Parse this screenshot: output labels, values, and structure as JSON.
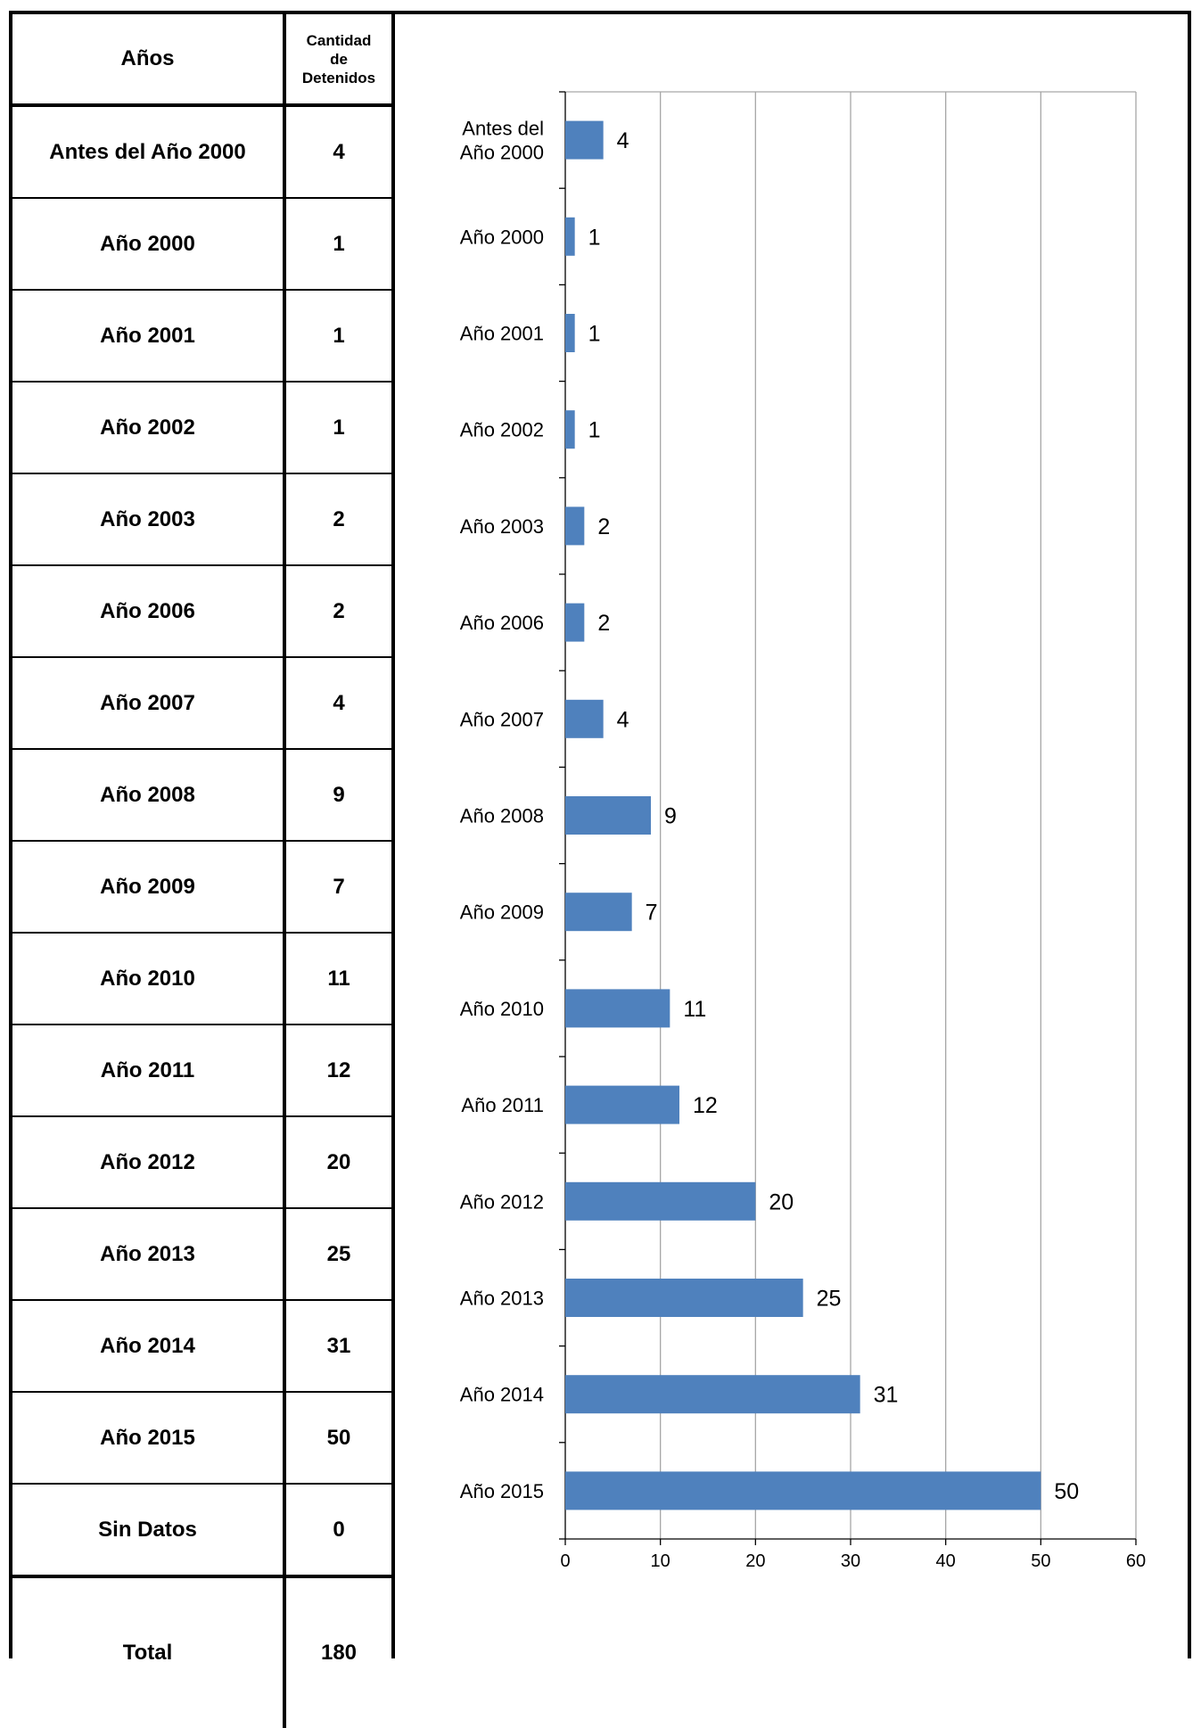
{
  "table": {
    "header_years": "Años",
    "header_count_line1": "Cantidad",
    "header_count_line2": "de",
    "header_count_line3": "Detenidos",
    "rows": [
      {
        "year": "Antes del Año 2000",
        "count": "4"
      },
      {
        "year": "Año 2000",
        "count": "1"
      },
      {
        "year": "Año 2001",
        "count": "1"
      },
      {
        "year": "Año 2002",
        "count": "1"
      },
      {
        "year": "Año 2003",
        "count": "2"
      },
      {
        "year": "Año 2006",
        "count": "2"
      },
      {
        "year": "Año 2007",
        "count": "4"
      },
      {
        "year": "Año 2008",
        "count": "9"
      },
      {
        "year": "Año 2009",
        "count": "7"
      },
      {
        "year": "Año 2010",
        "count": "11"
      },
      {
        "year": "Año 2011",
        "count": "12"
      },
      {
        "year": "Año 2012",
        "count": "20"
      },
      {
        "year": "Año 2013",
        "count": "25"
      },
      {
        "year": "Año 2014",
        "count": "31"
      },
      {
        "year": "Año 2015",
        "count": "50"
      },
      {
        "year": "Sin Datos",
        "count": "0"
      }
    ],
    "total_label": "Total",
    "total_value": "180"
  },
  "chart_data": {
    "type": "bar",
    "orientation": "horizontal",
    "categories": [
      [
        "Antes del",
        "Año 2000"
      ],
      [
        "Año 2000"
      ],
      [
        "Año 2001"
      ],
      [
        "Año 2002"
      ],
      [
        "Año 2003"
      ],
      [
        "Año 2006"
      ],
      [
        "Año 2007"
      ],
      [
        "Año 2008"
      ],
      [
        "Año 2009"
      ],
      [
        "Año 2010"
      ],
      [
        "Año 2011"
      ],
      [
        "Año 2012"
      ],
      [
        "Año 2013"
      ],
      [
        "Año 2014"
      ],
      [
        "Año 2015"
      ]
    ],
    "values": [
      4,
      1,
      1,
      1,
      2,
      2,
      4,
      9,
      7,
      11,
      12,
      20,
      25,
      31,
      50
    ],
    "xlim": [
      0,
      60
    ],
    "xticks": [
      0,
      10,
      20,
      30,
      40,
      50,
      60
    ],
    "grid": true,
    "data_labels": true,
    "bar_color": "#4f81bd",
    "title": "",
    "xlabel": "",
    "ylabel": ""
  }
}
